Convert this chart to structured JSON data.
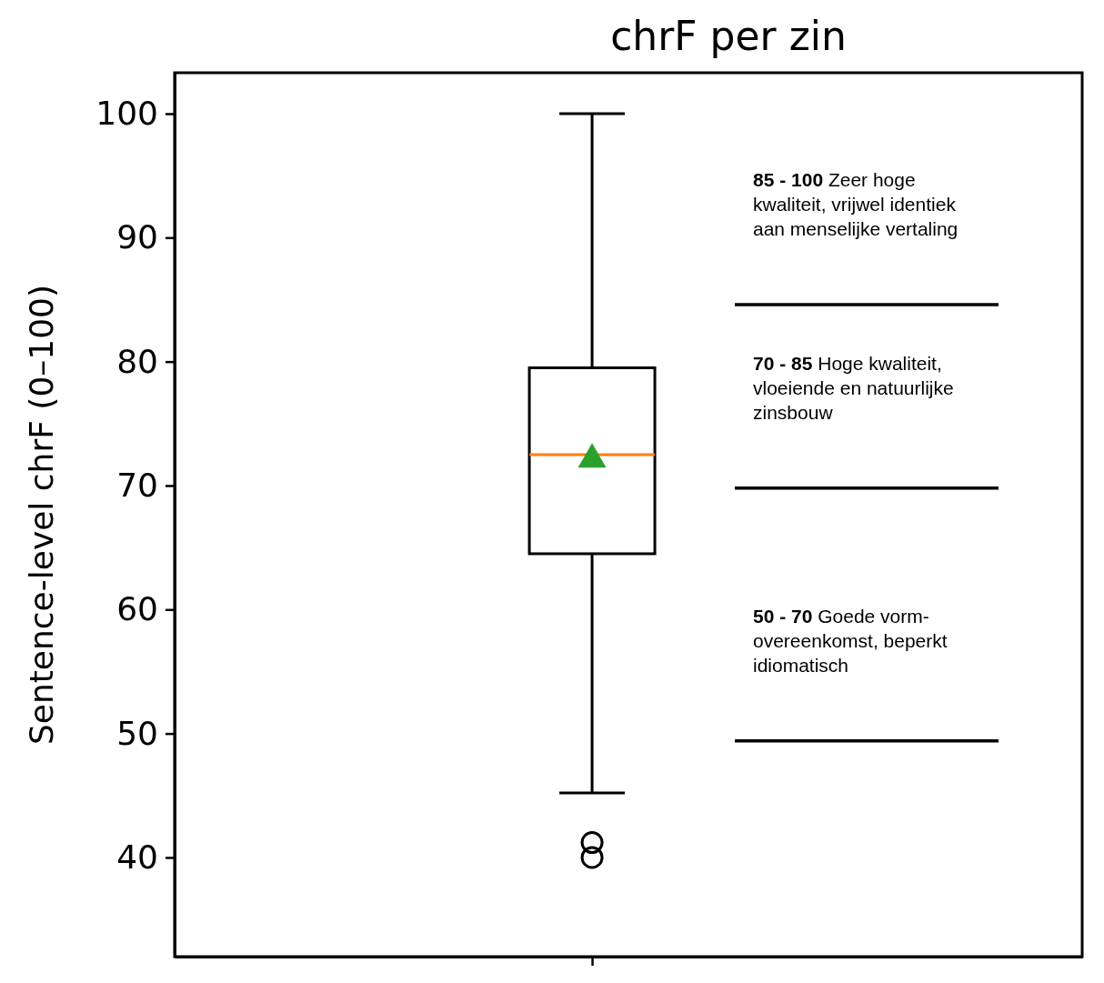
{
  "chart_data": {
    "type": "box",
    "title": "chrF per zin",
    "ylabel": "Sentence-level chrF (0–100)",
    "boxes": [
      {
        "low": 45.2,
        "q1": 64.5,
        "median": 72.5,
        "q3": 79.5,
        "high": 100,
        "mean": 72.1,
        "outliers": [
          41.2,
          40.0
        ]
      }
    ],
    "ylim": [
      32,
      103.3
    ],
    "yticks": [
      40,
      50,
      60,
      70,
      80,
      90,
      100
    ],
    "tick_labels": "y",
    "grid": false,
    "ref_lines": [
      {
        "axis": "y",
        "value": 84.6,
        "color": "#000000"
      },
      {
        "axis": "y",
        "value": 69.8,
        "color": "#000000"
      },
      {
        "axis": "y",
        "value": 49.4,
        "color": "#000000"
      }
    ],
    "annotations": [
      "85 - 100 Zeer hoge kwaliteit, vrijwel identiek aan menselijke vertaling",
      "70 - 85 Hoge kwaliteit, vloeiende en natuurlijke zinsbouw",
      "50 - 70  Goede vorm-overeenkomst, beperkt idiomatisch"
    ]
  }
}
